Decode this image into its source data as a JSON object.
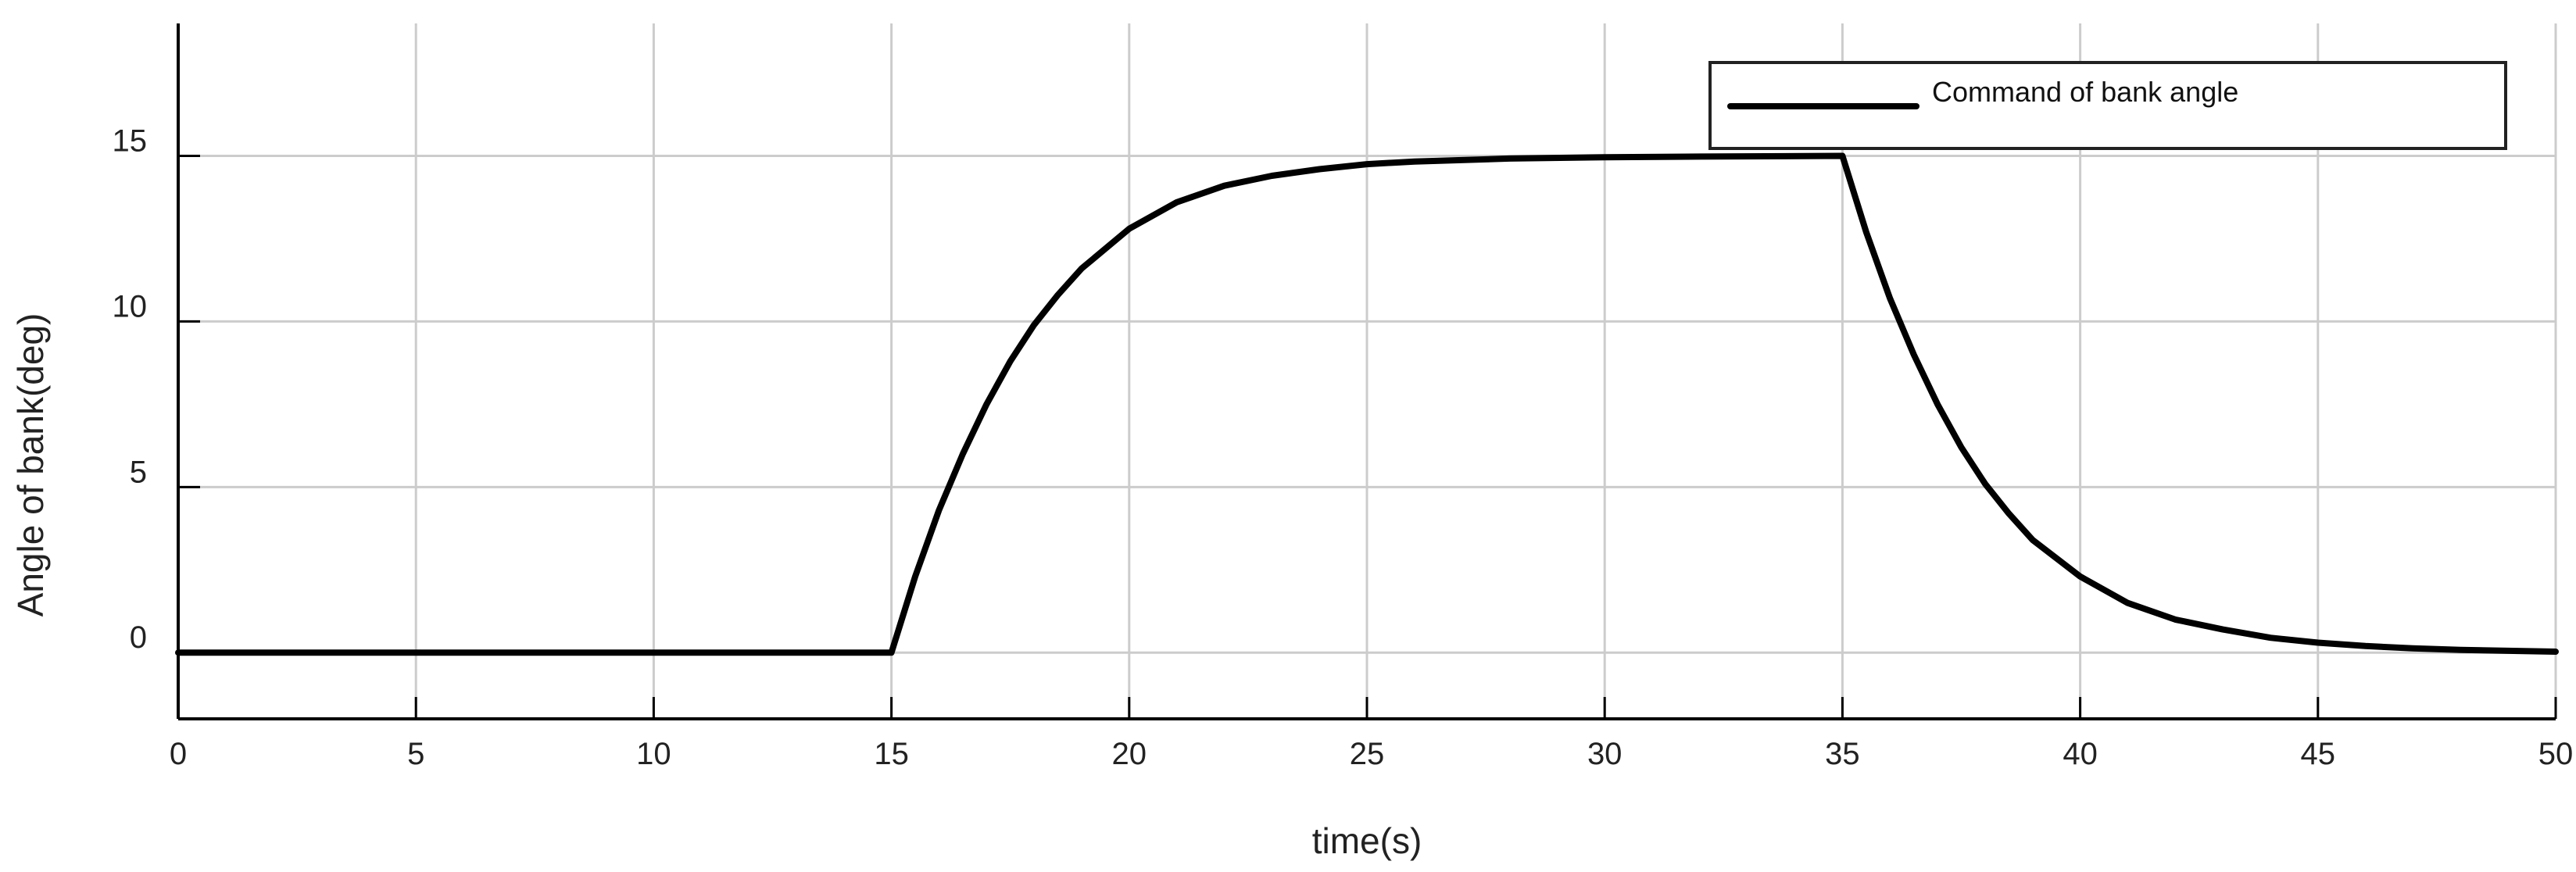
{
  "colors": {
    "series": "#000000",
    "grid": "#cccccc",
    "axis": "#000000",
    "background": "#ffffff"
  },
  "chart_data": {
    "type": "line",
    "title": "",
    "xlabel": "time(s)",
    "ylabel": "Angle of bank(deg)",
    "xlim": [
      0,
      50
    ],
    "ylim": [
      -2,
      19
    ],
    "xticks": [
      0,
      5,
      10,
      15,
      20,
      25,
      30,
      35,
      40,
      45,
      50
    ],
    "yticks": [
      0,
      5,
      10,
      15
    ],
    "grid": true,
    "legend": {
      "position": "top-right"
    },
    "series": [
      {
        "name": "Command of bank angle",
        "x": [
          0,
          5,
          10,
          15,
          15.5,
          16,
          16.5,
          17,
          17.5,
          18,
          18.5,
          19,
          20,
          21,
          22,
          23,
          24,
          25,
          26,
          28,
          30,
          32,
          35,
          35.5,
          36,
          36.5,
          37,
          37.5,
          38,
          38.5,
          39,
          40,
          41,
          42,
          43,
          44,
          45,
          46,
          47,
          48,
          50
        ],
        "y": [
          0,
          0,
          0,
          0,
          2.3,
          4.3,
          6.0,
          7.5,
          8.8,
          9.9,
          10.8,
          11.6,
          12.8,
          13.6,
          14.1,
          14.4,
          14.6,
          14.75,
          14.83,
          14.92,
          14.96,
          14.98,
          15,
          12.7,
          10.7,
          9.0,
          7.5,
          6.2,
          5.1,
          4.2,
          3.4,
          2.3,
          1.5,
          1.0,
          0.7,
          0.45,
          0.3,
          0.2,
          0.13,
          0.08,
          0.03
        ]
      }
    ]
  }
}
